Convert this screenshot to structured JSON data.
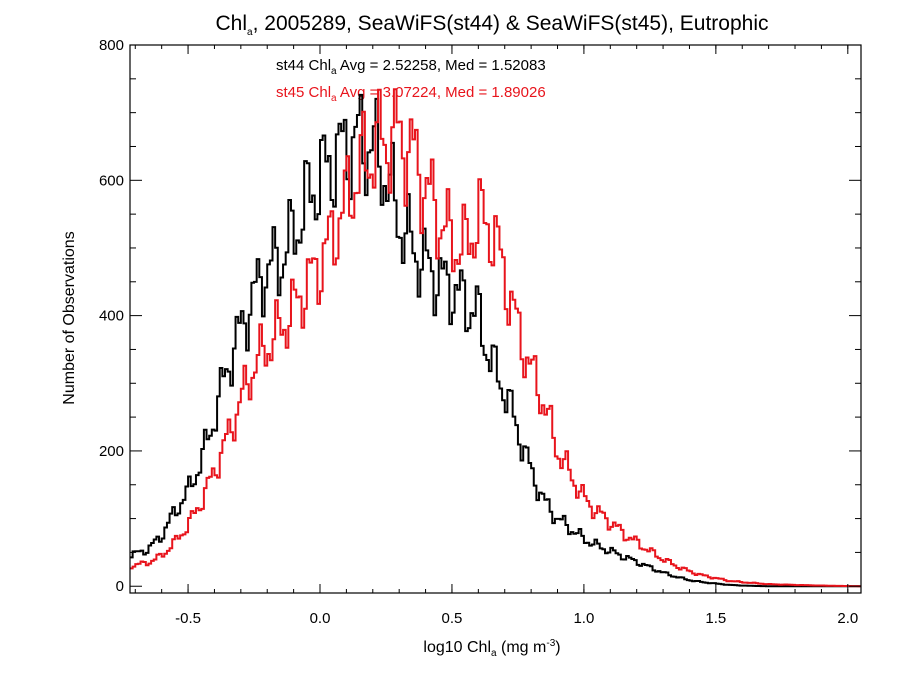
{
  "chart_data": {
    "type": "line",
    "title": {
      "prefix": "Chl",
      "sub": "a",
      "suffix": ", 2005289, SeaWiFS(st44) & SeaWiFS(st45), Eutrophic"
    },
    "xlabel": {
      "prefix": "log10 Chl",
      "sub": "a",
      "mid": " (mg m",
      "sup": "-3",
      "suffix": ")"
    },
    "ylabel": "Number of Observations",
    "xlim": [
      -0.72,
      2.05
    ],
    "ylim": [
      -10,
      800
    ],
    "x_ticks": [
      -0.5,
      0.0,
      0.5,
      1.0,
      1.5,
      2.0
    ],
    "x_tick_labels": [
      "-0.5",
      "0.0",
      "0.5",
      "1.0",
      "1.5",
      "2.0"
    ],
    "y_ticks": [
      0,
      200,
      400,
      600,
      800
    ],
    "y_tick_labels": [
      "0",
      "200",
      "400",
      "600",
      "800"
    ],
    "grid": false,
    "legend": "top-left (text annotations)",
    "annotations": [
      {
        "label_prefix": "st44 Chl",
        "label_sub": "a",
        "label_suffix": " Avg = 2.52258, Med = 1.52083",
        "color": "#000000"
      },
      {
        "label_prefix": "st45 Chl",
        "label_sub": "a",
        "label_suffix": " Avg = 3.07224, Med = 1.89026",
        "color": "#e8141c"
      }
    ],
    "series": [
      {
        "color": "#000000",
        "points": [
          [
            -0.72,
            45
          ],
          [
            -0.65,
            55
          ],
          [
            -0.6,
            75
          ],
          [
            -0.55,
            110
          ],
          [
            -0.5,
            140
          ],
          [
            -0.45,
            185
          ],
          [
            -0.4,
            250
          ],
          [
            -0.35,
            325
          ],
          [
            -0.3,
            380
          ],
          [
            -0.25,
            430
          ],
          [
            -0.2,
            470
          ],
          [
            -0.15,
            480
          ],
          [
            -0.1,
            520
          ],
          [
            -0.05,
            570
          ],
          [
            0.0,
            605
          ],
          [
            0.05,
            630
          ],
          [
            0.1,
            650
          ],
          [
            0.15,
            660
          ],
          [
            0.2,
            650
          ],
          [
            0.25,
            610
          ],
          [
            0.3,
            540
          ],
          [
            0.35,
            500
          ],
          [
            0.4,
            475
          ],
          [
            0.45,
            455
          ],
          [
            0.5,
            440
          ],
          [
            0.55,
            420
          ],
          [
            0.6,
            400
          ],
          [
            0.65,
            330
          ],
          [
            0.7,
            290
          ],
          [
            0.75,
            230
          ],
          [
            0.8,
            170
          ],
          [
            0.85,
            125
          ],
          [
            0.9,
            100
          ],
          [
            0.95,
            85
          ],
          [
            1.0,
            70
          ],
          [
            1.05,
            60
          ],
          [
            1.1,
            52
          ],
          [
            1.15,
            44
          ],
          [
            1.2,
            36
          ],
          [
            1.25,
            28
          ],
          [
            1.3,
            20
          ],
          [
            1.35,
            14
          ],
          [
            1.4,
            9
          ],
          [
            1.45,
            6
          ],
          [
            1.5,
            4
          ],
          [
            1.55,
            2
          ],
          [
            1.6,
            1
          ],
          [
            1.7,
            0
          ],
          [
            2.05,
            0
          ]
        ]
      },
      {
        "color": "#e8141c",
        "points": [
          [
            -0.72,
            30
          ],
          [
            -0.65,
            35
          ],
          [
            -0.6,
            45
          ],
          [
            -0.55,
            65
          ],
          [
            -0.5,
            90
          ],
          [
            -0.45,
            125
          ],
          [
            -0.4,
            170
          ],
          [
            -0.35,
            220
          ],
          [
            -0.3,
            275
          ],
          [
            -0.25,
            325
          ],
          [
            -0.2,
            355
          ],
          [
            -0.15,
            380
          ],
          [
            -0.1,
            410
          ],
          [
            -0.05,
            445
          ],
          [
            0.0,
            475
          ],
          [
            0.05,
            520
          ],
          [
            0.1,
            570
          ],
          [
            0.15,
            615
          ],
          [
            0.2,
            645
          ],
          [
            0.25,
            660
          ],
          [
            0.3,
            665
          ],
          [
            0.35,
            640
          ],
          [
            0.4,
            590
          ],
          [
            0.45,
            545
          ],
          [
            0.5,
            510
          ],
          [
            0.55,
            500
          ],
          [
            0.6,
            545
          ],
          [
            0.65,
            530
          ],
          [
            0.7,
            460
          ],
          [
            0.75,
            380
          ],
          [
            0.8,
            320
          ],
          [
            0.85,
            270
          ],
          [
            0.9,
            200
          ],
          [
            0.95,
            165
          ],
          [
            1.0,
            130
          ],
          [
            1.05,
            110
          ],
          [
            1.1,
            95
          ],
          [
            1.15,
            78
          ],
          [
            1.2,
            65
          ],
          [
            1.25,
            52
          ],
          [
            1.3,
            40
          ],
          [
            1.35,
            30
          ],
          [
            1.4,
            22
          ],
          [
            1.45,
            16
          ],
          [
            1.5,
            12
          ],
          [
            1.55,
            8
          ],
          [
            1.6,
            6
          ],
          [
            1.7,
            3
          ],
          [
            1.8,
            2
          ],
          [
            1.9,
            1
          ],
          [
            2.05,
            0
          ]
        ]
      }
    ]
  }
}
